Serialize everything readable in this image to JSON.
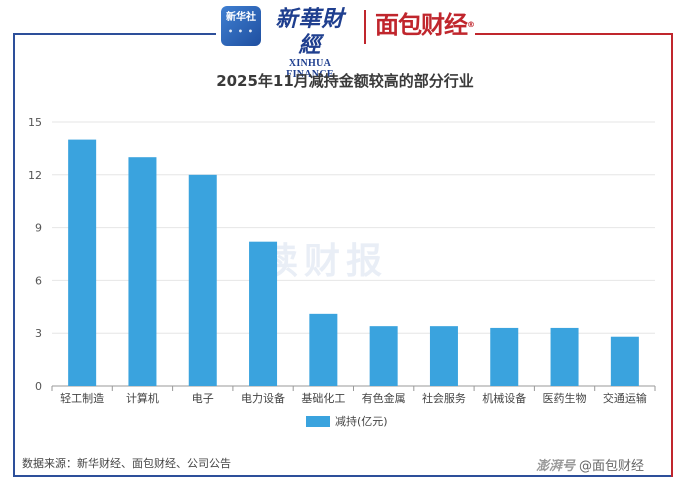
{
  "brand": {
    "xinhua_badge": "新华社",
    "xinhua_cn": "新華財經",
    "xinhua_en": "XINHUA FINANCE",
    "mianbao": "面包财经"
  },
  "watermark": "读财报",
  "source": "数据来源：新华财经、面包财经、公司公告",
  "footer": {
    "tag": "澎湃号",
    "account": "@面包财经"
  },
  "chart_data": {
    "type": "bar",
    "title": "2025年11月减持金额较高的部分行业",
    "categories": [
      "轻工制造",
      "计算机",
      "电子",
      "电力设备",
      "基础化工",
      "有色金属",
      "社会服务",
      "机械设备",
      "医药生物",
      "交通运输"
    ],
    "series": [
      {
        "name": "减持(亿元)",
        "values": [
          14.0,
          13.0,
          12.0,
          8.2,
          4.1,
          3.4,
          3.4,
          3.3,
          3.3,
          2.8
        ],
        "color": "#3aa3de"
      }
    ],
    "yticks": [
      0,
      3,
      6,
      9,
      12,
      15
    ],
    "ylim": [
      0,
      15
    ],
    "grid": true,
    "legend": "bottom"
  }
}
